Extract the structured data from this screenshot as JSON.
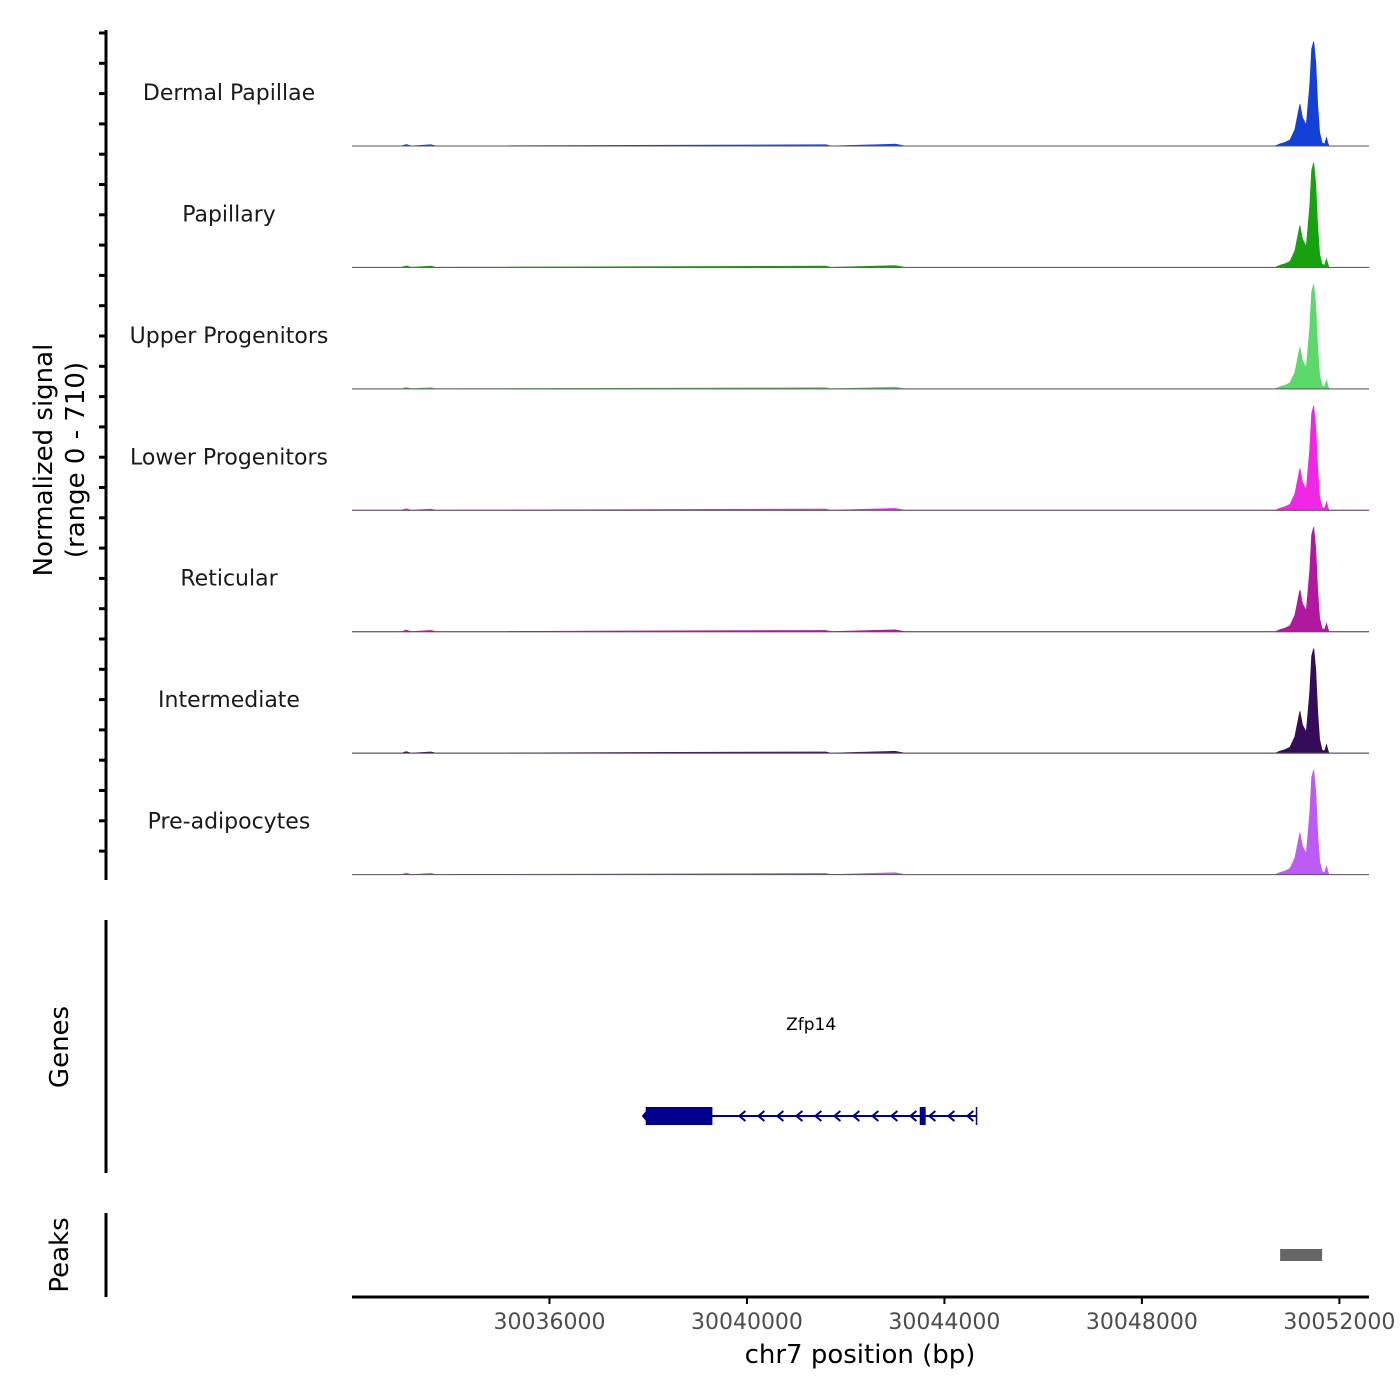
{
  "chart_data": {
    "type": "coverage-tracks",
    "ylabel_line1": "Normalized signal",
    "ylabel_line2": "(range 0 - 710)",
    "y_range": [
      0,
      710
    ],
    "x_range": [
      30032000,
      30052600
    ],
    "xlabel": "chr7 position (bp)",
    "x_ticks": [
      30036000,
      30040000,
      30044000,
      30048000,
      30052000
    ],
    "x_tick_labels": [
      "30036000",
      "30040000",
      "30044000",
      "30048000",
      "30052000"
    ],
    "tracks": [
      {
        "name": "Dermal Papillae",
        "color": "#1440d8"
      },
      {
        "name": "Papillary",
        "color": "#18a10e"
      },
      {
        "name": "Upper Progenitors",
        "color": "#5dd86a"
      },
      {
        "name": "Lower Progenitors",
        "color": "#f028e6"
      },
      {
        "name": "Reticular",
        "color": "#b0189e"
      },
      {
        "name": "Intermediate",
        "color": "#340c5a"
      },
      {
        "name": "Pre-adipocytes",
        "color": "#bd5cf2"
      }
    ],
    "coverage_profile": [
      {
        "x": 30052600,
        "y": 0
      },
      {
        "x": 30032000,
        "y": 0
      },
      {
        "x": 30033000,
        "y": 0
      },
      {
        "x": 30033100,
        "y": 10
      },
      {
        "x": 30033200,
        "y": 0
      },
      {
        "x": 30033600,
        "y": 8
      },
      {
        "x": 30033700,
        "y": 0
      },
      {
        "x": 30041600,
        "y": 8
      },
      {
        "x": 30041700,
        "y": 0
      },
      {
        "x": 30043000,
        "y": 12
      },
      {
        "x": 30043200,
        "y": 0
      },
      {
        "x": 30050700,
        "y": 0
      },
      {
        "x": 30050800,
        "y": 14
      },
      {
        "x": 30050900,
        "y": 24
      },
      {
        "x": 30051000,
        "y": 40
      },
      {
        "x": 30051100,
        "y": 110
      },
      {
        "x": 30051200,
        "y": 280
      },
      {
        "x": 30051250,
        "y": 190
      },
      {
        "x": 30051330,
        "y": 140
      },
      {
        "x": 30051400,
        "y": 410
      },
      {
        "x": 30051440,
        "y": 650
      },
      {
        "x": 30051480,
        "y": 700
      },
      {
        "x": 30051520,
        "y": 560
      },
      {
        "x": 30051560,
        "y": 270
      },
      {
        "x": 30051600,
        "y": 90
      },
      {
        "x": 30051650,
        "y": 20
      },
      {
        "x": 30051700,
        "y": 14
      },
      {
        "x": 30051740,
        "y": 55
      },
      {
        "x": 30051770,
        "y": 18
      },
      {
        "x": 30051790,
        "y": 0
      }
    ],
    "gene_track_label": "Genes",
    "gene": {
      "name": "Zfp14",
      "start": 30037950,
      "end": 30044650,
      "strand": "-",
      "exons": [
        [
          30037950,
          30039300
        ],
        [
          30043500,
          30043620
        ]
      ],
      "color": "#00008b"
    },
    "peak_track_label": "Peaks",
    "peaks": [
      {
        "start": 30050800,
        "end": 30051650,
        "color": "#666666"
      }
    ]
  }
}
